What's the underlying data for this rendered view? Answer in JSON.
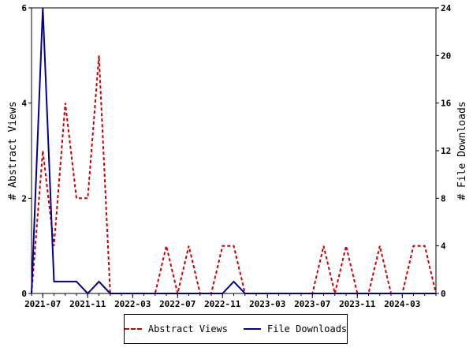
{
  "chart_data": {
    "type": "line",
    "x_ticks": [
      "2021-07",
      "2021-11",
      "2022-03",
      "2022-07",
      "2022-11",
      "2023-03",
      "2023-07",
      "2023-11",
      "2024-03"
    ],
    "x": [
      "2021-06",
      "2021-07",
      "2021-08",
      "2021-09",
      "2021-10",
      "2021-11",
      "2021-12",
      "2022-01",
      "2022-02",
      "2022-03",
      "2022-04",
      "2022-05",
      "2022-06",
      "2022-07",
      "2022-08",
      "2022-09",
      "2022-10",
      "2022-11",
      "2022-12",
      "2023-01",
      "2023-02",
      "2023-03",
      "2023-04",
      "2023-05",
      "2023-06",
      "2023-07",
      "2023-08",
      "2023-09",
      "2023-10",
      "2023-11",
      "2023-12",
      "2024-01",
      "2024-02",
      "2024-03",
      "2024-04",
      "2024-05",
      "2024-06"
    ],
    "series": [
      {
        "name": "Abstract Views",
        "axis": "left",
        "color": "#cc0000",
        "style": "dashed",
        "values": [
          0,
          3,
          1,
          4,
          2,
          2,
          5,
          0,
          0,
          0,
          0,
          0,
          1,
          0,
          1,
          0,
          0,
          1,
          1,
          0,
          0,
          0,
          0,
          0,
          0,
          0,
          1,
          0,
          1,
          0,
          0,
          1,
          0,
          0,
          1,
          1,
          0
        ]
      },
      {
        "name": "File Downloads",
        "axis": "right",
        "color": "#000099",
        "style": "solid",
        "values": [
          0,
          24,
          1,
          1,
          1,
          0,
          1,
          0,
          0,
          0,
          0,
          0,
          0,
          0,
          0,
          0,
          0,
          0,
          1,
          0,
          0,
          0,
          0,
          0,
          0,
          0,
          0,
          0,
          0,
          0,
          0,
          0,
          0,
          0,
          0,
          0,
          0
        ]
      }
    ],
    "ylabel": "# Abstract Views",
    "ylim": [
      0,
      6
    ],
    "yticks": [
      "0",
      "2",
      "4",
      "6"
    ],
    "y2label": "# File Downloads",
    "y2lim": [
      0,
      24
    ],
    "y2ticks": [
      "0",
      "4",
      "8",
      "12",
      "16",
      "20",
      "24"
    ],
    "legend_position": "bottom-center",
    "grid": false
  }
}
